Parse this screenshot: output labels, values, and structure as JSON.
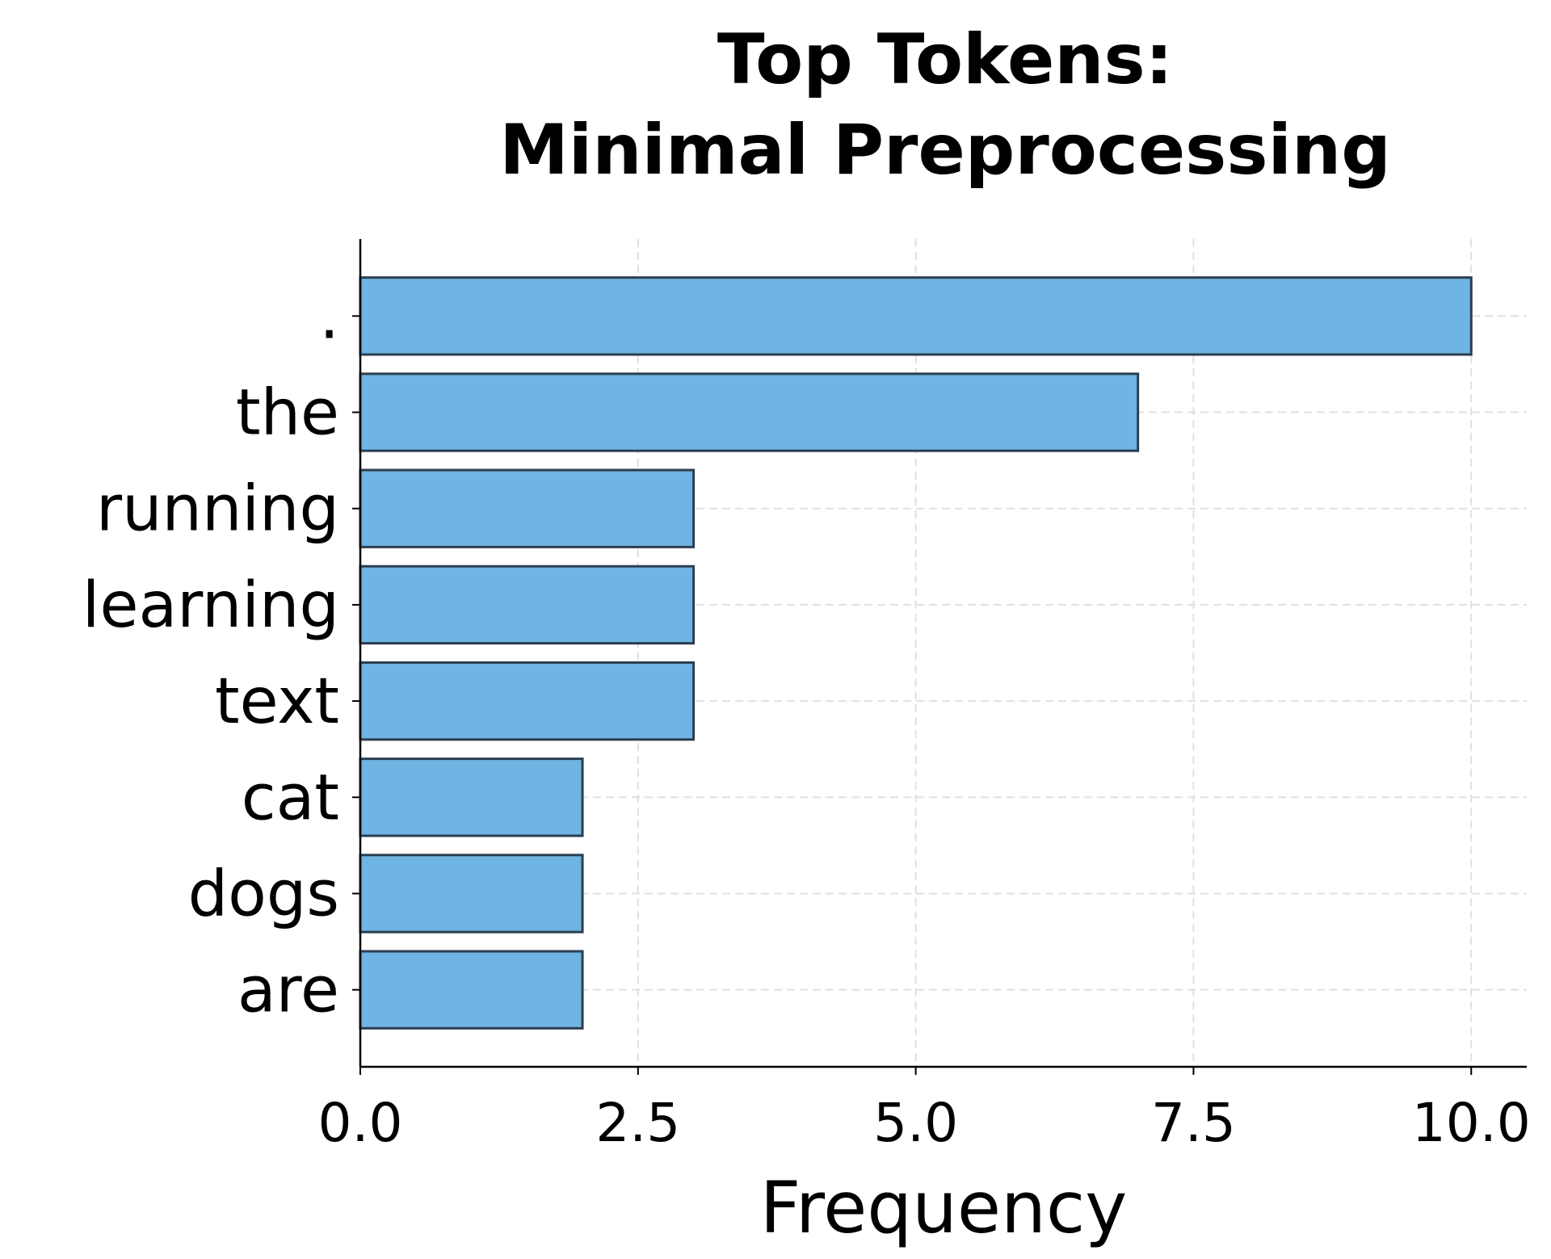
{
  "chart_data": {
    "type": "bar",
    "orientation": "horizontal",
    "title": "Top Tokens:\nMinimal Preprocessing",
    "xlabel": "Frequency",
    "categories": [
      ".",
      "the",
      "running",
      "learning",
      "text",
      "cat",
      "dogs",
      "are"
    ],
    "values": [
      10,
      7,
      3,
      3,
      3,
      2,
      2,
      2
    ],
    "color": "#6fb4e2",
    "edgecolor": "#2c3e50",
    "xlim": [
      0,
      10.5
    ],
    "xticks": [
      {
        "value": 0,
        "label": "0.0"
      },
      {
        "value": 2.5,
        "label": "2.5"
      },
      {
        "value": 5,
        "label": "5.0"
      },
      {
        "value": 7.5,
        "label": "7.5"
      },
      {
        "value": 10,
        "label": "10.0"
      }
    ],
    "grid": true
  }
}
